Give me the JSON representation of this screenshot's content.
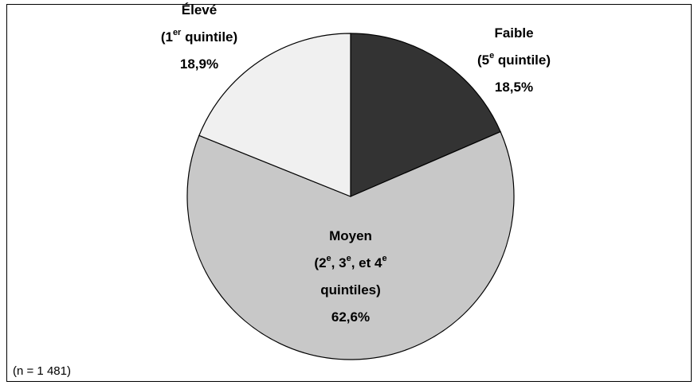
{
  "chart_data": {
    "type": "pie",
    "categories": [
      [
        [
          "Faible"
        ],
        [
          "(5",
          {
            "sup": "e"
          },
          " quintile)"
        ]
      ],
      [
        [
          "Moyen"
        ],
        [
          "(2",
          {
            "sup": "e"
          },
          ", 3",
          {
            "sup": "e"
          },
          ", et 4",
          {
            "sup": "e"
          }
        ],
        [
          "quintiles)"
        ]
      ],
      [
        [
          "Élevé"
        ],
        [
          "(1",
          {
            "sup": "er"
          },
          " quintile)"
        ]
      ]
    ],
    "values": [
      18.5,
      62.6,
      18.9
    ],
    "value_labels": [
      "18,5%",
      "62,6%",
      "18,9%"
    ],
    "colors": [
      "#333333",
      "#c8c8c8",
      "#f0f0f0"
    ],
    "note": "(n = 1 481)"
  }
}
